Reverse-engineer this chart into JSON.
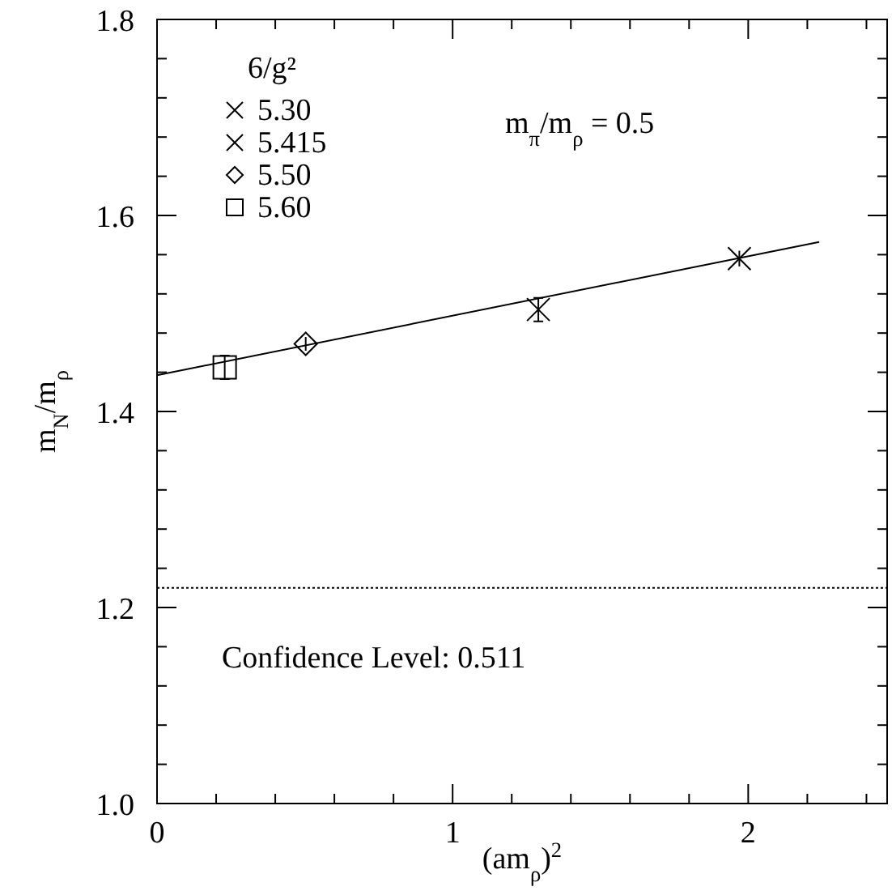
{
  "chart_data": {
    "type": "scatter",
    "xlabel": "(am$_{ρ}$)$^{2}$",
    "ylabel": "m$_{N}$/m$_{ρ}$",
    "legend_title": "6/g²",
    "legend": "top left",
    "annotations": [
      "m$_{π}$/m$_{ρ}$ = 0.5",
      "Confidence Level: 0.511"
    ],
    "xlim": [
      0,
      2.47
    ],
    "ylim": [
      1.0,
      1.8
    ],
    "xticks": [
      0,
      {
        "value": 0.2,
        "label": null
      },
      {
        "value": 0.4,
        "label": null
      },
      {
        "value": 0.6,
        "label": null
      },
      {
        "value": 0.8,
        "label": null
      },
      1,
      {
        "value": 1.2,
        "label": null
      },
      {
        "value": 1.4,
        "label": null
      },
      {
        "value": 1.6,
        "label": null
      },
      {
        "value": 1.8,
        "label": null
      },
      2,
      {
        "value": 2.2,
        "label": null
      },
      {
        "value": 2.4,
        "label": null
      }
    ],
    "yticks": [
      {
        "value": 1.0,
        "label": "1.0"
      },
      {
        "value": 1.04,
        "label": null
      },
      {
        "value": 1.08,
        "label": null
      },
      {
        "value": 1.12,
        "label": null
      },
      {
        "value": 1.16,
        "label": null
      },
      {
        "value": 1.2,
        "label": "1.2"
      },
      {
        "value": 1.24,
        "label": null
      },
      {
        "value": 1.28,
        "label": null
      },
      {
        "value": 1.32,
        "label": null
      },
      {
        "value": 1.36,
        "label": null
      },
      {
        "value": 1.4,
        "label": "1.4"
      },
      {
        "value": 1.44,
        "label": null
      },
      {
        "value": 1.48,
        "label": null
      },
      {
        "value": 1.52,
        "label": null
      },
      {
        "value": 1.56,
        "label": null
      },
      {
        "value": 1.6,
        "label": "1.6"
      },
      {
        "value": 1.64,
        "label": null
      },
      {
        "value": 1.68,
        "label": null
      },
      {
        "value": 1.72,
        "label": null
      },
      {
        "value": 1.76,
        "label": null
      },
      {
        "value": 1.8,
        "label": "1.8"
      }
    ],
    "ref_lines": [
      {
        "axis": "y",
        "value": 1.22,
        "line_style": "dotted",
        "color": "#000000"
      }
    ],
    "series": [
      {
        "name": "5.30",
        "color": "#000000",
        "marker": "cross",
        "x": [
          1.97
        ],
        "values": [
          1.556
        ],
        "errors": [
          0.008
        ]
      },
      {
        "name": "5.415",
        "color": "#000000",
        "marker": "cross",
        "x": [
          1.29
        ],
        "values": [
          1.504
        ],
        "errors": [
          0.012
        ]
      },
      {
        "name": "5.50",
        "color": "#000000",
        "marker": "diamond",
        "x": [
          0.503
        ],
        "values": [
          1.469
        ],
        "errors": [
          0.007
        ]
      },
      {
        "name": "5.60",
        "color": "#000000",
        "marker": "square",
        "x": [
          0.229
        ],
        "values": [
          1.445
        ],
        "errors": [
          0.012
        ]
      },
      {
        "type": "line",
        "color": "#000000",
        "line_style": "solid",
        "x": [
          0,
          2.24
        ],
        "values": [
          1.437,
          1.573
        ]
      }
    ]
  }
}
